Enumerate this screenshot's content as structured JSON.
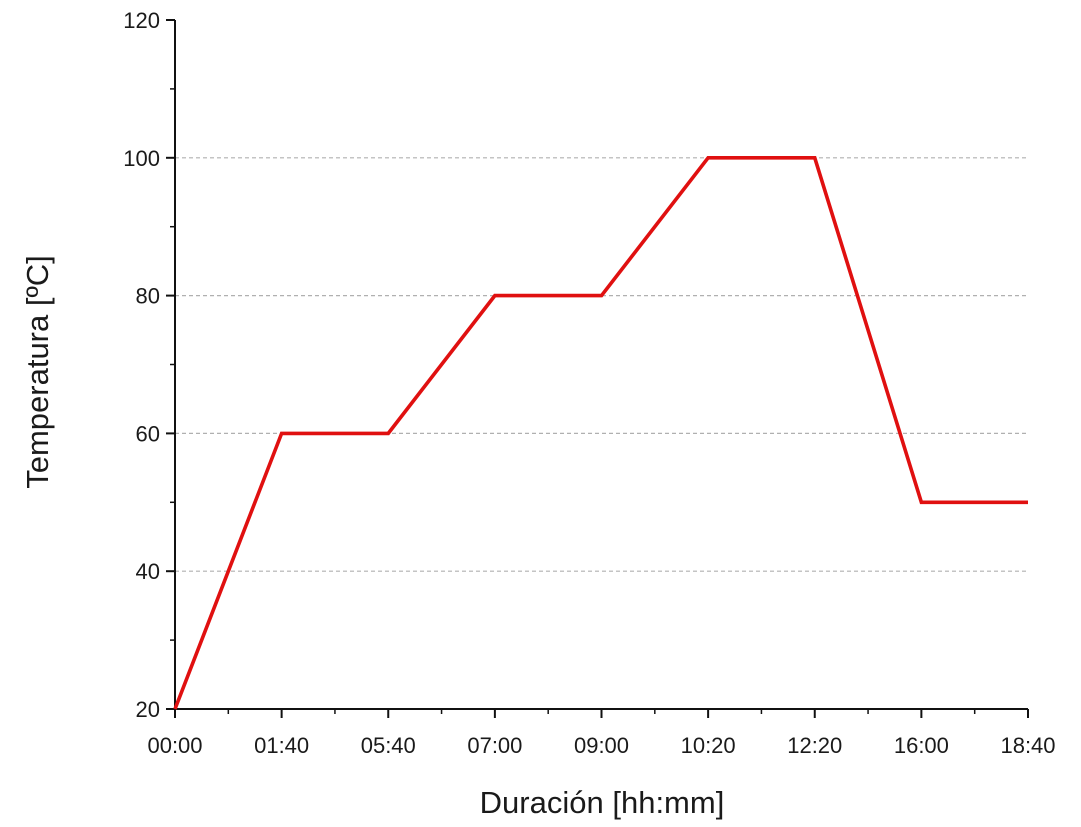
{
  "chart_data": {
    "type": "line",
    "title": "",
    "xlabel": "Duración [hh:mm]",
    "ylabel": "Temperatura [ºC]",
    "categories": [
      "00:00",
      "01:40",
      "05:40",
      "07:00",
      "09:00",
      "10:20",
      "12:20",
      "16:00",
      "18:40"
    ],
    "series": [
      {
        "name": "",
        "color": "#e01010",
        "values": [
          20,
          60,
          60,
          80,
          80,
          100,
          100,
          50,
          50
        ]
      }
    ],
    "ylim": [
      20,
      120
    ],
    "yticks": [
      20,
      40,
      60,
      80,
      100,
      120
    ],
    "grid": "horizontal dashed at 40, 60, 80, 100",
    "legend": "none"
  }
}
